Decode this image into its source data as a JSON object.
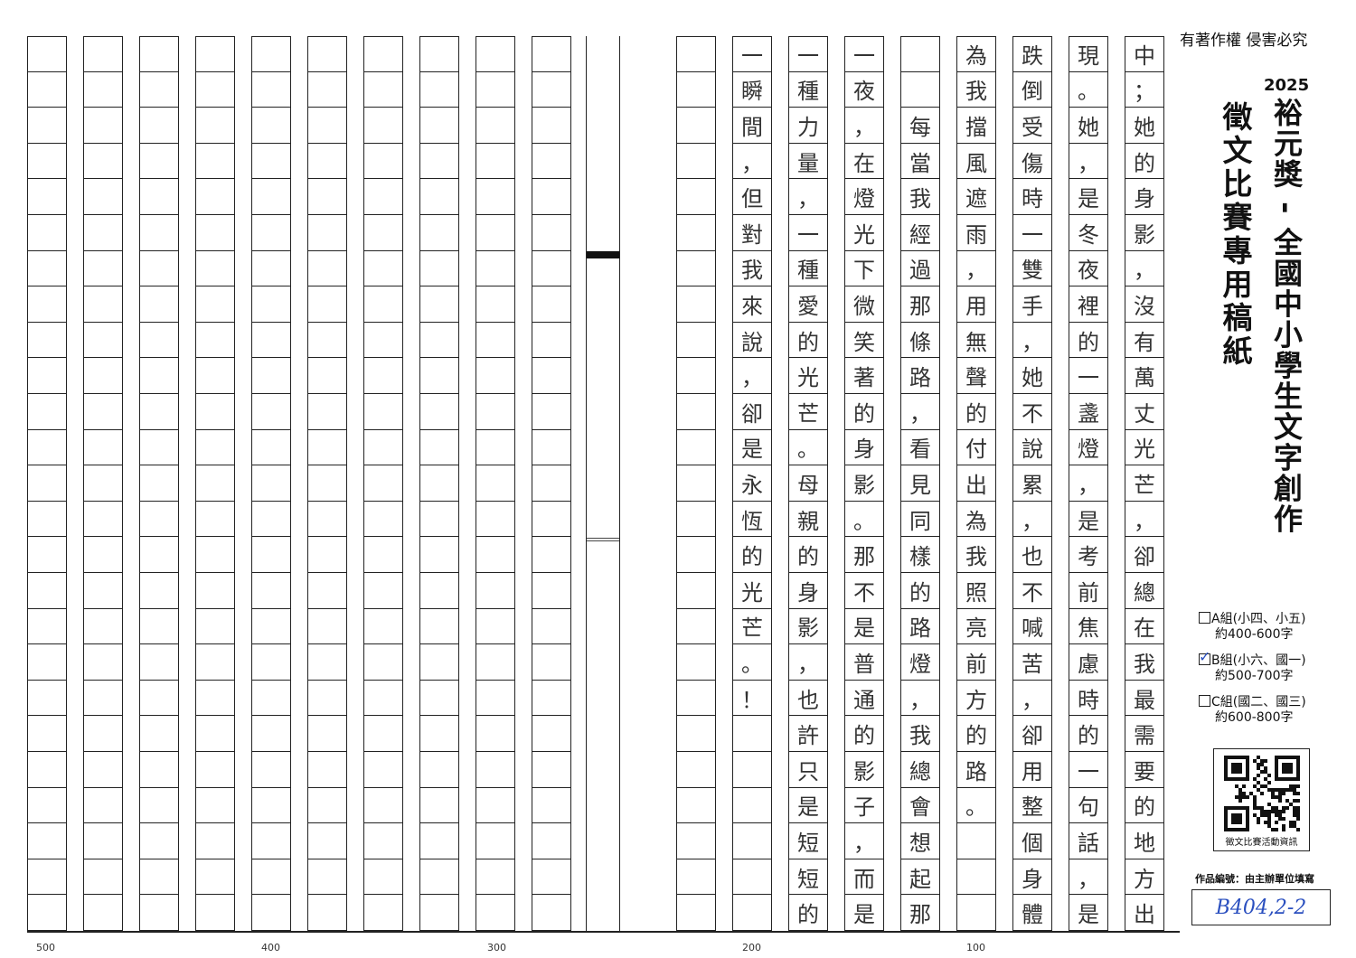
{
  "header": {
    "copyright": "有著作權 侵害必究",
    "year": "2025",
    "title": "裕元獎 - 全國中小學生文字創作",
    "subtitle": "徵文比賽專用稿紙"
  },
  "groups": [
    {
      "label": "A組(小四、小五)",
      "range": "約400-600字",
      "checked": false
    },
    {
      "label": "B組(小六、國一)",
      "range": "約500-700字",
      "checked": true
    },
    {
      "label": "C組(國二、國三)",
      "range": "約600-800字",
      "checked": false
    }
  ],
  "qr": {
    "caption": "徵文比賽活動資訊"
  },
  "serial": {
    "label": "作品編號：由主辦單位填寫",
    "value": "B404,2-2"
  },
  "ink_color": "#2a4fbf",
  "char_counts": [
    "500",
    "400",
    "300",
    "200",
    "100"
  ],
  "columns_right_to_left": [
    "中；她的身影，沒有萬丈光芒，卻總在我最需要的地方出",
    "現。她，是冬夜裡的一盞燈，是考前焦慮時的一句話，是",
    "跌倒受傷時一雙手，她不說累，也不喊苦，卻用整個身體",
    "為我擋風遮雨，用無聲的付出為我照亮前方的路。",
    "　　每當我經過那條路，看見同樣的路燈，我總會想起那",
    "一夜，在燈光下微笑著的身影。那不是普通的影子，而是",
    "一種力量，一種愛的光芒。母親的身影，也許只是短短的",
    "一瞬間，但對我來說，卻是永恆的光芒。！",
    "",
    "",
    "",
    "",
    "",
    "",
    "",
    "",
    "",
    "",
    ""
  ]
}
